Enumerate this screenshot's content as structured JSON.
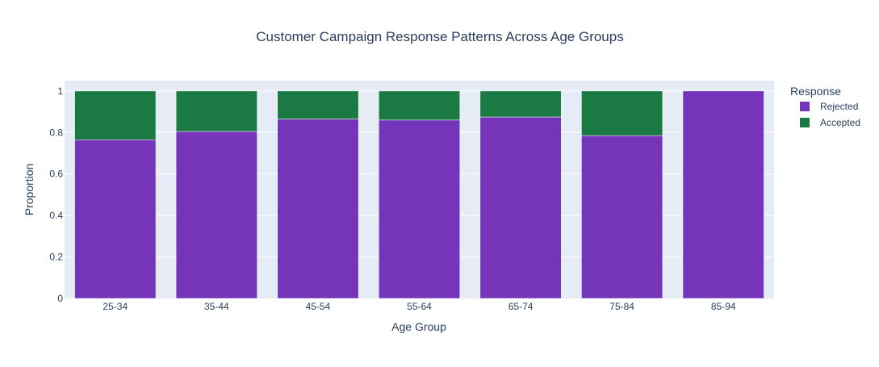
{
  "chart_data": {
    "type": "bar",
    "stacked": true,
    "title": "Customer Campaign Response Patterns Across Age Groups",
    "xlabel": "Age Group",
    "ylabel": "Proportion",
    "ylim": [
      0,
      1.05
    ],
    "yticks": [
      0,
      0.2,
      0.4,
      0.6,
      0.8,
      1
    ],
    "ytick_labels": [
      "0",
      "0.2",
      "0.4",
      "0.6",
      "0.8",
      "1"
    ],
    "grid": true,
    "legend": {
      "title": "Response",
      "placement": "top-right"
    },
    "categories": [
      "25-34",
      "35-44",
      "45-54",
      "55-64",
      "65-74",
      "75-84",
      "85-94"
    ],
    "series": [
      {
        "name": "Rejected",
        "color": "#7435bb",
        "values": [
          0.765,
          0.805,
          0.865,
          0.86,
          0.875,
          0.785,
          1.0
        ]
      },
      {
        "name": "Accepted",
        "color": "#1b7a44",
        "values": [
          0.235,
          0.195,
          0.135,
          0.14,
          0.125,
          0.215,
          0.0
        ]
      }
    ]
  },
  "colors": {
    "plot_background": "#e5ecf6",
    "gridline": "#ffffff",
    "text": "#2a3f5f"
  }
}
